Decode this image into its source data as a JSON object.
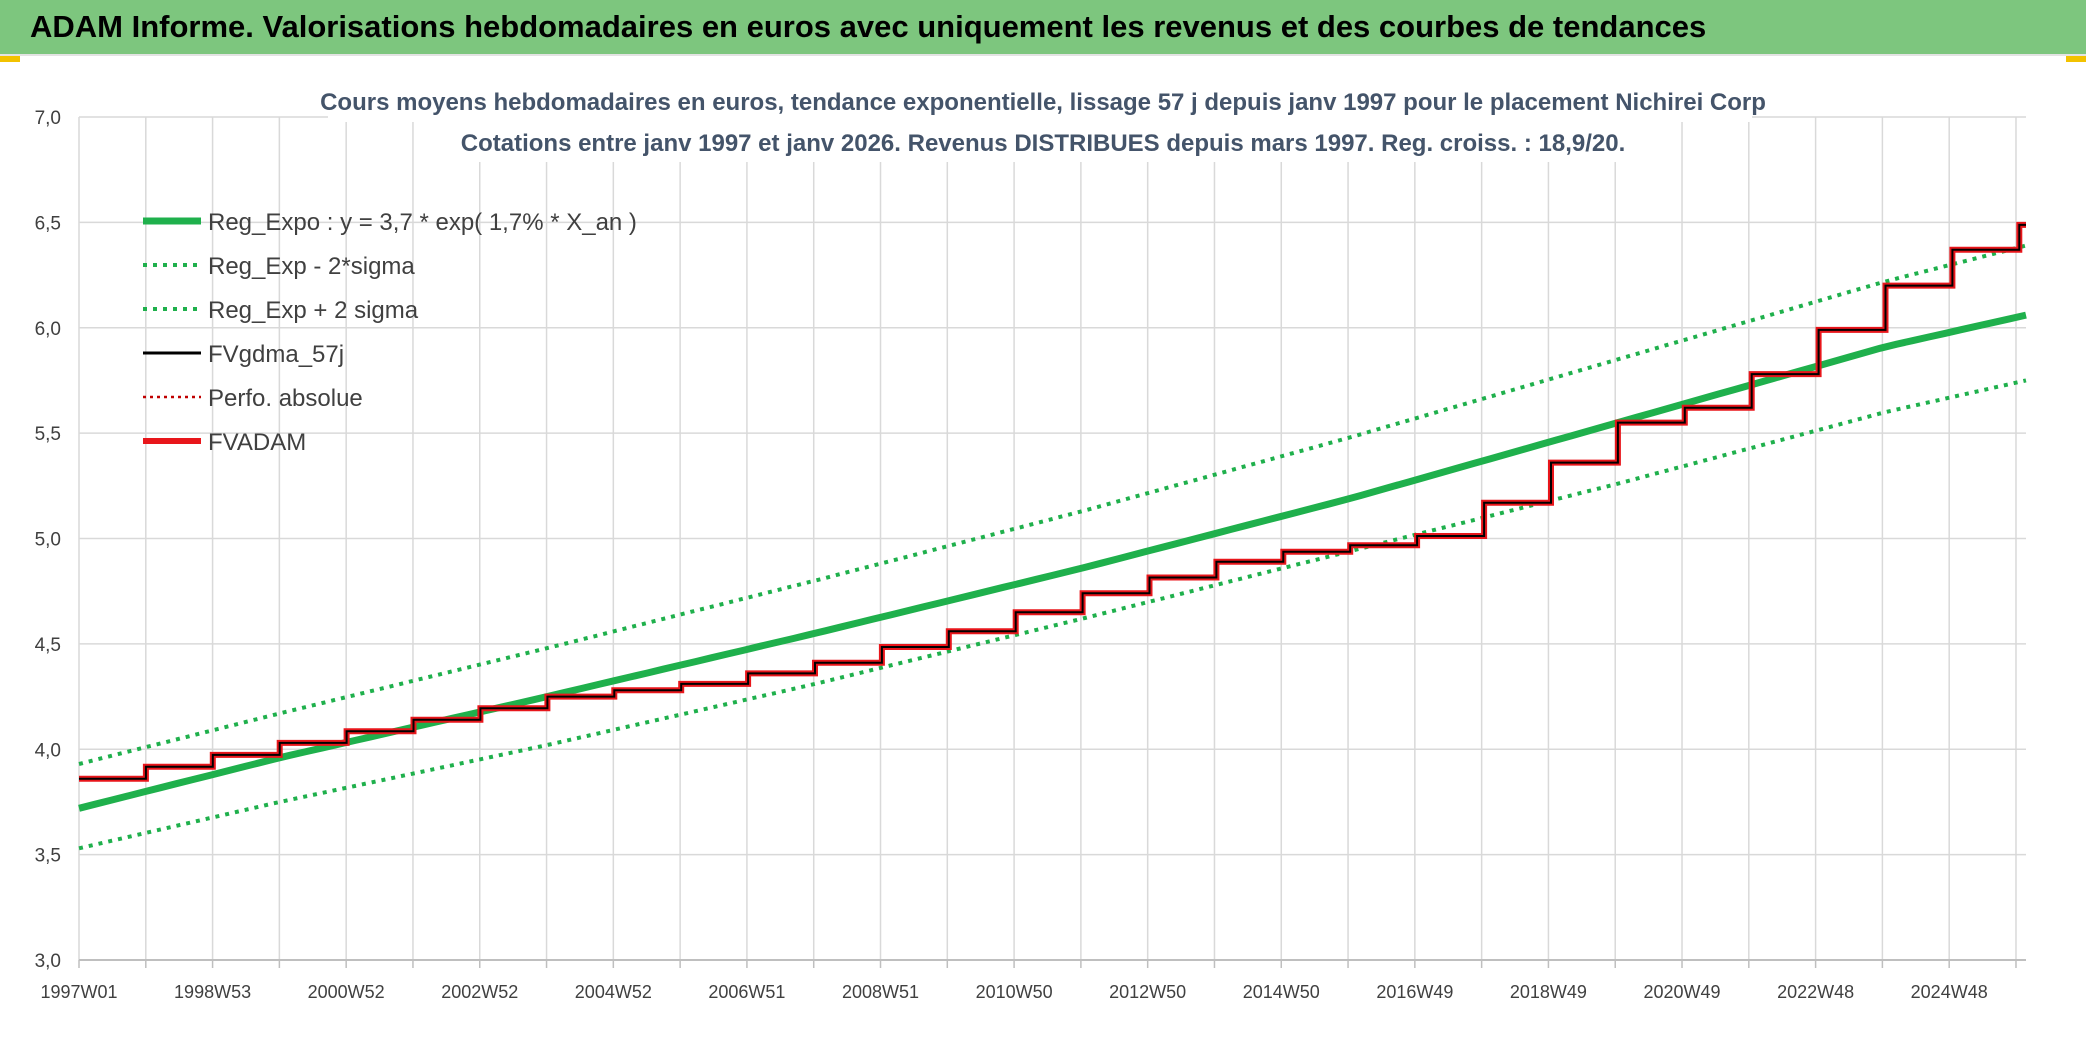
{
  "banner": {
    "title": "ADAM Informe. Valorisations hebdomadaires en euros avec uniquement les revenus et des courbes de tendances"
  },
  "chart_data": {
    "type": "line",
    "title": "Cours moyens hebdomadaires en euros, tendance exponentielle, lissage 57 j depuis janv 1997 pour le placement Nichirei Corp",
    "subtitle": "Cotations entre janv 1997 et janv 2026. Revenus DISTRIBUES depuis mars 1997. Reg. croiss. : 18,9/20.",
    "xlabel": "",
    "ylabel": "",
    "ylim": [
      3.0,
      7.0
    ],
    "xlim": [
      1997.0,
      2026.1
    ],
    "yticks": [
      "3,0",
      "3,5",
      "4,0",
      "4,5",
      "5,0",
      "5,5",
      "6,0",
      "6,5",
      "7,0"
    ],
    "xtick_labels": [
      "1997W01",
      "1998W53",
      "2000W52",
      "2002W52",
      "2004W52",
      "2006W51",
      "2008W51",
      "2010W50",
      "2012W50",
      "2014W50",
      "2016W49",
      "2018W49",
      "2020W49",
      "2022W48",
      "2024W48"
    ],
    "grid": true,
    "legend_position": "top-left",
    "series": [
      {
        "name": "Reg_Expo : y = 3,7 * exp( 1,7% *  X_an )",
        "color": "#1fb04c",
        "style": "solid-thick",
        "x": [
          1997.0,
          2000.0,
          2004.0,
          2008.0,
          2012.0,
          2016.0,
          2020.0,
          2024.0,
          2026.1
        ],
        "y": [
          3.72,
          3.96,
          4.25,
          4.55,
          4.86,
          5.19,
          5.55,
          5.91,
          6.06
        ]
      },
      {
        "name": "Reg_Exp - 2*sigma",
        "color": "#1fb04c",
        "style": "dotted",
        "x": [
          1997.0,
          2000.0,
          2004.0,
          2008.0,
          2012.0,
          2016.0,
          2020.0,
          2024.0,
          2026.1
        ],
        "y": [
          3.53,
          3.75,
          4.02,
          4.31,
          4.62,
          4.94,
          5.26,
          5.6,
          5.75
        ]
      },
      {
        "name": "Reg_Exp + 2 sigma",
        "color": "#1fb04c",
        "style": "dotted",
        "x": [
          1997.0,
          2000.0,
          2004.0,
          2008.0,
          2012.0,
          2016.0,
          2020.0,
          2024.0,
          2026.1
        ],
        "y": [
          3.93,
          4.17,
          4.48,
          4.8,
          5.13,
          5.48,
          5.85,
          6.22,
          6.39
        ]
      },
      {
        "name": "FVgdma_57j",
        "color": "#000000",
        "style": "solid",
        "x": [
          1997.0,
          2000.0,
          2002.0,
          2004.0,
          2006.0,
          2008.0,
          2010.0,
          2012.0,
          2014.0,
          2015.5,
          2016.8,
          2018.0,
          2020.0,
          2021.0,
          2022.0,
          2024.0,
          2025.0,
          2026.1
        ],
        "y": [
          3.86,
          4.03,
          4.14,
          4.25,
          4.31,
          4.41,
          4.56,
          4.74,
          4.89,
          4.96,
          4.98,
          5.17,
          5.55,
          5.62,
          5.78,
          6.2,
          6.37,
          6.5
        ]
      },
      {
        "name": "Perfo. absolue",
        "color": "#c00000",
        "style": "dotted",
        "x": [],
        "y": []
      },
      {
        "name": "FVADAM",
        "color": "#e8161b",
        "style": "step-thick",
        "x": [
          1997.0,
          2000.0,
          2002.0,
          2004.0,
          2006.0,
          2008.0,
          2010.0,
          2012.0,
          2014.0,
          2015.5,
          2016.8,
          2018.0,
          2020.0,
          2021.0,
          2022.0,
          2024.0,
          2025.0,
          2026.1
        ],
        "y": [
          3.86,
          4.03,
          4.14,
          4.25,
          4.31,
          4.41,
          4.56,
          4.74,
          4.89,
          4.96,
          4.98,
          5.17,
          5.55,
          5.62,
          5.78,
          6.2,
          6.37,
          6.5
        ]
      }
    ]
  }
}
